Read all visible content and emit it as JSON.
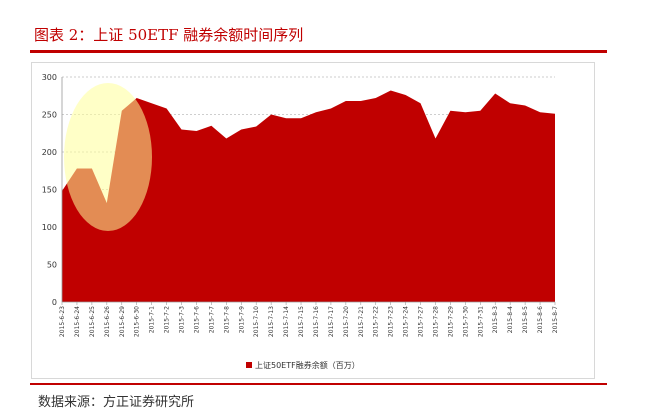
{
  "header": {
    "title": "图表 2：上证 50ETF 融券余额时间序列"
  },
  "footer": {
    "source": "数据来源：方正证券研究所"
  },
  "chart_data": {
    "type": "area",
    "title": "",
    "xlabel": "",
    "ylabel": "",
    "ylim": [
      0,
      300
    ],
    "yticks": [
      0,
      50,
      100,
      150,
      200,
      250,
      300
    ],
    "grid": true,
    "legend": "bottom",
    "colors": {
      "area": "#c00000",
      "highlight": "#ffff99"
    },
    "x": [
      "2015-6-23",
      "2015-6-24",
      "2015-6-25",
      "2015-6-26",
      "2015-6-29",
      "2015-6-30",
      "2015-7-1",
      "2015-7-2",
      "2015-7-3",
      "2015-7-6",
      "2015-7-7",
      "2015-7-8",
      "2015-7-9",
      "2015-7-10",
      "2015-7-13",
      "2015-7-14",
      "2015-7-15",
      "2015-7-16",
      "2015-7-17",
      "2015-7-20",
      "2015-7-21",
      "2015-7-22",
      "2015-7-23",
      "2015-7-24",
      "2015-7-27",
      "2015-7-28",
      "2015-7-29",
      "2015-7-30",
      "2015-7-31",
      "2015-8-3",
      "2015-8-4",
      "2015-8-5",
      "2015-8-6",
      "2015-8-7"
    ],
    "series": [
      {
        "name": "上证50ETF融券余额（百万）",
        "values": [
          148,
          178,
          178,
          132,
          255,
          272,
          265,
          258,
          230,
          228,
          235,
          218,
          230,
          234,
          250,
          245,
          245,
          253,
          258,
          268,
          268,
          272,
          282,
          276,
          265,
          218,
          255,
          253,
          255,
          278,
          265,
          262,
          253,
          251
        ]
      }
    ]
  }
}
